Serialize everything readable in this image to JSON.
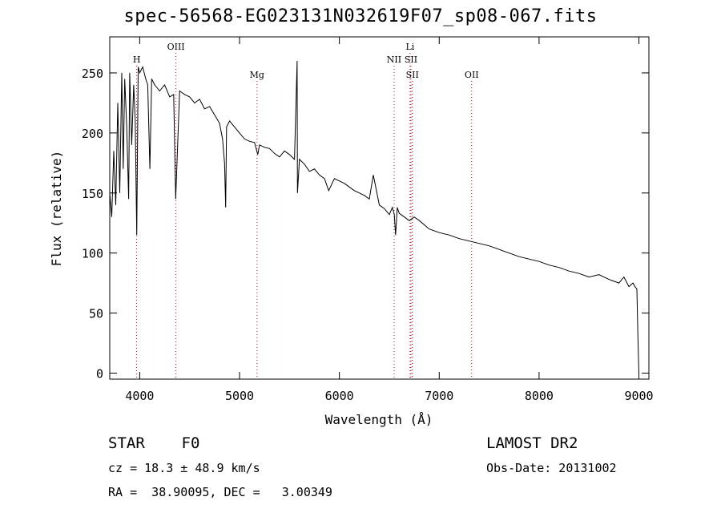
{
  "chart_data": {
    "type": "line",
    "title": "spec-56568-EG023131N032619F07_sp08-067.fits",
    "xlabel": "Wavelength (Å)",
    "ylabel": "Flux (relative)",
    "xlim": [
      3700,
      9100
    ],
    "ylim": [
      -5,
      280
    ],
    "xticks": [
      4000,
      5000,
      6000,
      7000,
      8000,
      9000
    ],
    "yticks": [
      0,
      50,
      100,
      150,
      200,
      250
    ],
    "xtick_labels": [
      "4000",
      "5000",
      "6000",
      "7000",
      "8000",
      "9000"
    ],
    "ytick_labels": [
      "0",
      "50",
      "100",
      "150",
      "200",
      "250"
    ],
    "grid": false,
    "legend": "none",
    "line_color": "#000000",
    "marker_color": "#cc0000",
    "series": [
      {
        "x": [
          3700,
          3720,
          3740,
          3760,
          3780,
          3800,
          3820,
          3835,
          3850,
          3870,
          3889,
          3900,
          3920,
          3940,
          3955,
          3970,
          3985,
          4000,
          4030,
          4060,
          4080,
          4102,
          4120,
          4150,
          4200,
          4250,
          4300,
          4340,
          4360,
          4400,
          4450,
          4500,
          4550,
          4600,
          4650,
          4700,
          4750,
          4800,
          4830,
          4850,
          4861,
          4870,
          4900,
          4950,
          5000,
          5050,
          5100,
          5150,
          5172,
          5183,
          5200,
          5250,
          5300,
          5350,
          5400,
          5450,
          5500,
          5550,
          5577,
          5580,
          5600,
          5650,
          5700,
          5750,
          5800,
          5850,
          5893,
          5950,
          6000,
          6050,
          6100,
          6150,
          6200,
          6250,
          6300,
          6340,
          6400,
          6450,
          6500,
          6530,
          6550,
          6563,
          6580,
          6600,
          6650,
          6700,
          6750,
          6800,
          6900,
          7000,
          7100,
          7200,
          7300,
          7400,
          7500,
          7600,
          7700,
          7800,
          7900,
          8000,
          8100,
          8200,
          8300,
          8400,
          8500,
          8600,
          8700,
          8800,
          8850,
          8900,
          8940,
          8960,
          8980,
          8990,
          9000
        ],
        "y": [
          150,
          130,
          185,
          140,
          225,
          150,
          250,
          170,
          245,
          205,
          145,
          250,
          190,
          240,
          210,
          115,
          255,
          250,
          255,
          245,
          240,
          170,
          245,
          240,
          235,
          240,
          230,
          232,
          145,
          235,
          232,
          230,
          225,
          228,
          220,
          222,
          215,
          208,
          195,
          175,
          138,
          205,
          210,
          205,
          200,
          195,
          193,
          192,
          185,
          182,
          190,
          188,
          187,
          183,
          180,
          185,
          182,
          178,
          260,
          150,
          178,
          174,
          168,
          170,
          165,
          162,
          152,
          162,
          160,
          158,
          155,
          152,
          150,
          148,
          145,
          165,
          140,
          137,
          132,
          138,
          132,
          115,
          138,
          133,
          130,
          127,
          130,
          127,
          120,
          117,
          115,
          112,
          110,
          108,
          106,
          103,
          100,
          97,
          95,
          93,
          90,
          88,
          85,
          83,
          80,
          82,
          78,
          75,
          80,
          72,
          75,
          72,
          70,
          30,
          0
        ]
      }
    ],
    "line_markers": [
      {
        "label": "H",
        "x": 3970,
        "color": "#cc0000",
        "row": 2
      },
      {
        "label": "OIII",
        "x": 4363,
        "color": "#cc0000",
        "row": 1
      },
      {
        "label": "Mg",
        "x": 5175,
        "color": "#cc0000",
        "row": 3
      },
      {
        "label": "NII",
        "x": 6548,
        "color": "#cc0000",
        "row": 2
      },
      {
        "label": "Li",
        "x": 6708,
        "color": "#cc0000",
        "row": 1
      },
      {
        "label": "SII",
        "x": 6717,
        "color": "#cc0000",
        "row": 2
      },
      {
        "label": "SII",
        "x": 6731,
        "color": "#cc0000",
        "row": 3
      },
      {
        "label": "OII",
        "x": 7325,
        "color": "#cc0000",
        "row": 3
      }
    ]
  },
  "info": {
    "class_line": "STAR    F0",
    "cz_line": "cz = 18.3 ± 48.9 km/s",
    "radec_line": "RA =  38.90095, DEC =   3.00349",
    "survey": "LAMOST DR2",
    "obs_date": "Obs-Date: 20131002"
  }
}
